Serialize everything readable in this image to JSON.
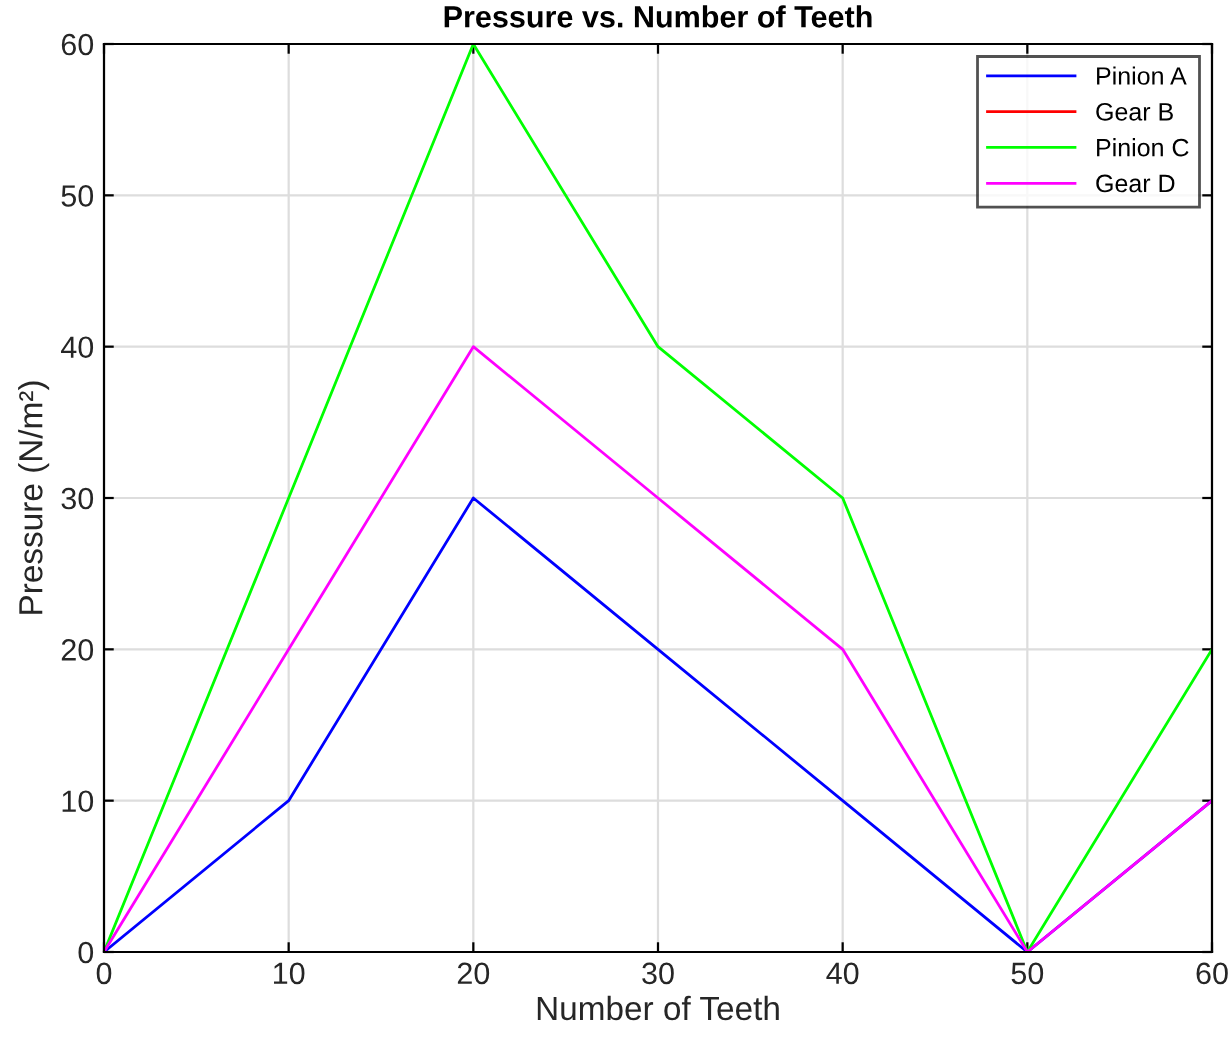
{
  "chart_data": {
    "type": "line",
    "title": "Pressure vs. Number of Teeth",
    "xlabel": "Number of Teeth",
    "ylabel": "Pressure (N/m²)",
    "x": [
      0,
      10,
      20,
      30,
      40,
      50,
      60
    ],
    "series": [
      {
        "name": "Pinion A",
        "color": "#0000ff",
        "values": [
          0,
          10,
          30,
          20,
          10,
          0,
          10
        ]
      },
      {
        "name": "Gear B",
        "color": "#ff0000",
        "values": [
          null,
          null,
          null,
          null,
          null,
          null,
          null
        ]
      },
      {
        "name": "Pinion C",
        "color": "#00ff00",
        "values": [
          0,
          30,
          60,
          40,
          30,
          0,
          20
        ]
      },
      {
        "name": "Gear D",
        "color": "#ff00ff",
        "values": [
          0,
          20,
          40,
          30,
          20,
          0,
          10
        ]
      }
    ],
    "xlim": [
      0,
      60
    ],
    "ylim": [
      0,
      60
    ],
    "xticks": [
      0,
      10,
      20,
      30,
      40,
      50,
      60
    ],
    "yticks": [
      0,
      10,
      20,
      30,
      40,
      50,
      60
    ],
    "grid": true,
    "legend": "top right",
    "marker": "none",
    "line_style": "solid"
  }
}
